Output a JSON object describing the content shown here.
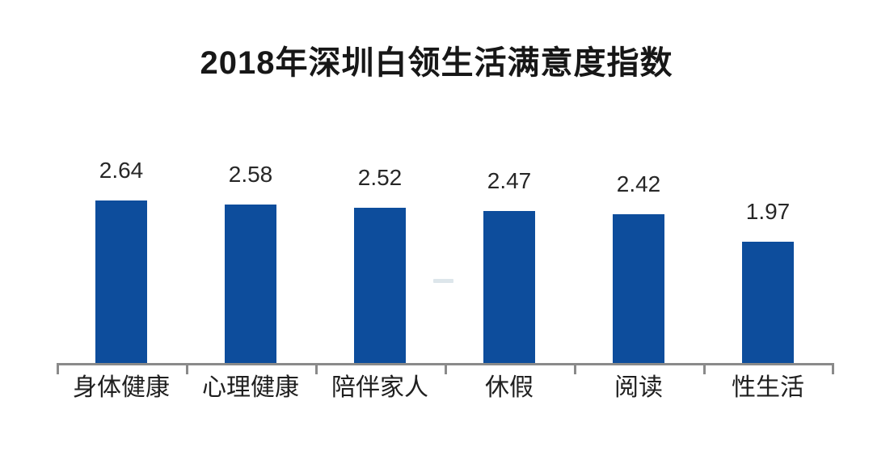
{
  "chart_data": {
    "type": "bar",
    "title": "2018年深圳白领生活满意度指数",
    "categories": [
      "身体健康",
      "心理健康",
      "陪伴家人",
      "休假",
      "阅读",
      "性生活"
    ],
    "values": [
      2.64,
      2.58,
      2.52,
      2.47,
      2.42,
      1.97
    ],
    "value_labels": [
      "2.64",
      "2.58",
      "2.52",
      "2.47",
      "2.42",
      "1.97"
    ],
    "xlabel": "",
    "ylabel": "",
    "ylim": [
      0,
      3
    ],
    "grid": false,
    "legend": "none",
    "bar_color": "#0d4d9c",
    "axis_color": "#8a8a8a",
    "title_color": "#171717",
    "value_label_color": "#272727",
    "category_label_color": "#1f1f1f",
    "background": "#ffffff",
    "watermark_artifact_color": "#cbd8e0"
  }
}
